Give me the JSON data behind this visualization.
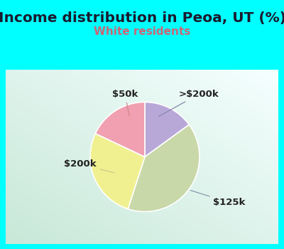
{
  "title": "Income distribution in Peoa, UT (%)",
  "subtitle": "White residents",
  "title_color": "#1a1a2e",
  "subtitle_color": "#cc6677",
  "background_color": "#00ffff",
  "plot_bg_top_right": "#f0faf8",
  "plot_bg_bot_left": "#c8e8d8",
  "labels": [
    ">$200k",
    "$125k",
    "$200k",
    "$50k"
  ],
  "sizes": [
    15,
    40,
    27,
    18
  ],
  "colors": [
    "#b8a8d8",
    "#c8d8a8",
    "#f0f090",
    "#f0a0b0"
  ],
  "title_fontsize": 14.5,
  "subtitle_fontsize": 11,
  "label_fontsize": 9.5
}
